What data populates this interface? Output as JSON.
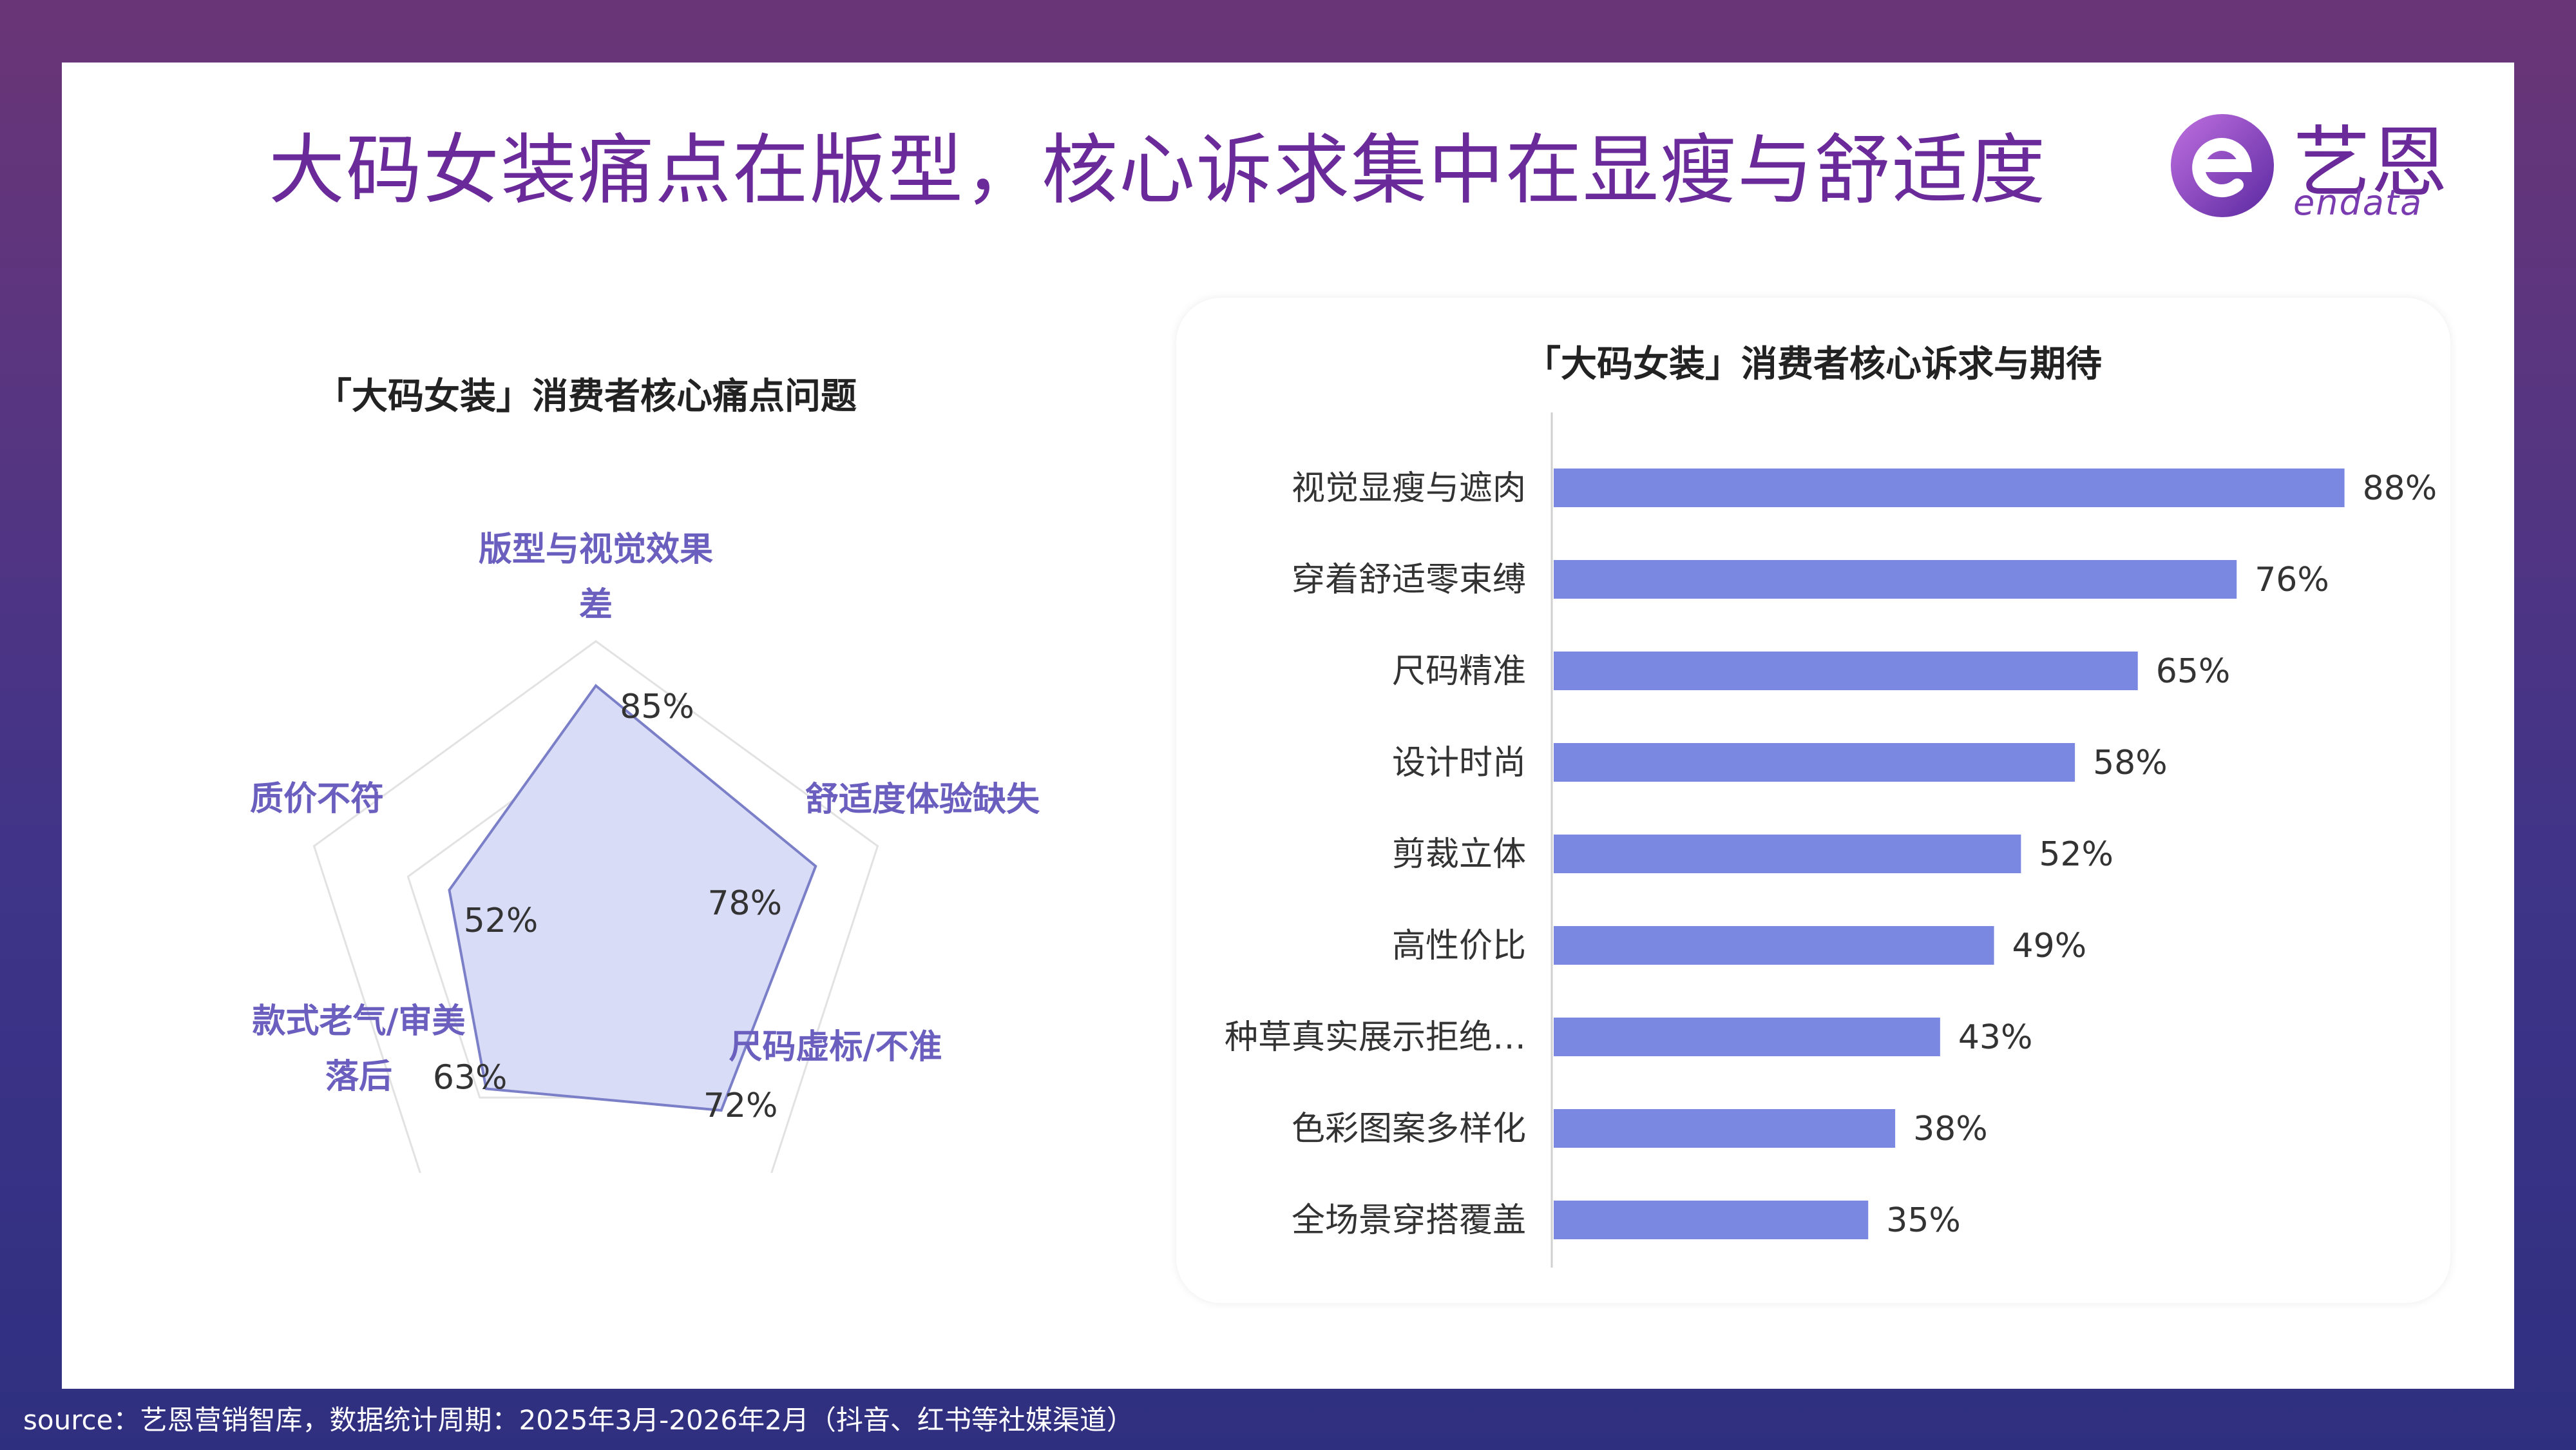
{
  "title": "大码女装痛点在版型，核心诉求集中在显瘦与舒适度",
  "logo": {
    "text_cn": "艺恩",
    "text_en": "endata"
  },
  "source": "source：艺恩营销智库，数据统计周期：2025年3月-2026年2月（抖音、红书等社媒渠道）",
  "colors": {
    "title": "#6a2a9a",
    "radar_fill": "#d9dcf6",
    "radar_stroke": "#7a7fc8",
    "radar_label": "#6a5fbf",
    "bar": "#7b88e2"
  },
  "chart_data": [
    {
      "type": "radar",
      "title": "「大码女装」消费者核心痛点问题",
      "categories": [
        {
          "lines": [
            "版型与视觉效果",
            "差"
          ]
        },
        {
          "lines": [
            "舒适度体验缺失"
          ]
        },
        {
          "lines": [
            "尺码虚标/不准"
          ]
        },
        {
          "lines": [
            "款式老气/审美",
            "落后"
          ]
        },
        {
          "lines": [
            "质价不符"
          ]
        }
      ],
      "values": [
        85,
        78,
        72,
        63,
        52
      ],
      "value_labels": [
        "85%",
        "78%",
        "72%",
        "63%",
        "52%"
      ],
      "rmax": 100,
      "grid_levels": 3
    },
    {
      "type": "bar",
      "orientation": "horizontal",
      "title": "「大码女装」消费者核心诉求与期待",
      "categories": [
        "视觉显瘦与遮肉",
        "穿着舒适零束缚",
        "尺码精准",
        "设计时尚",
        "剪裁立体",
        "高性价比",
        "种草真实展示拒绝…",
        "色彩图案多样化",
        "全场景穿搭覆盖"
      ],
      "values": [
        88,
        76,
        65,
        58,
        52,
        49,
        43,
        38,
        35
      ],
      "value_labels": [
        "88%",
        "76%",
        "65%",
        "58%",
        "52%",
        "49%",
        "43%",
        "38%",
        "35%"
      ],
      "xlim": [
        0,
        100
      ]
    }
  ]
}
